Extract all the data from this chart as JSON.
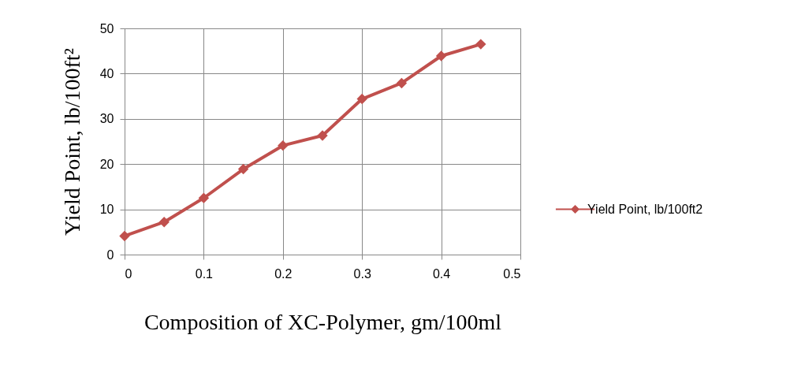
{
  "chart_data": {
    "type": "line",
    "xlabel": "Composition of XC-Polymer, gm/100ml",
    "ylabel": "Yield Point, lb/100ft²",
    "x": [
      0,
      0.05,
      0.1,
      0.15,
      0.2,
      0.25,
      0.3,
      0.35,
      0.4,
      0.45
    ],
    "series": [
      {
        "name": "Yield Point, lb/100ft2",
        "color": "#c0504d",
        "values": [
          4.1,
          7.2,
          12.5,
          18.9,
          24.1,
          26.3,
          34.4,
          37.9,
          43.9,
          46.5
        ]
      }
    ],
    "xlim": [
      0,
      0.5
    ],
    "xticks": [
      0,
      0.1,
      0.2,
      0.3,
      0.4,
      0.5
    ],
    "ylim": [
      0,
      50
    ],
    "yticks": [
      0,
      10,
      20,
      30,
      40,
      50
    ],
    "grid": true,
    "legend": "right",
    "marker": "diamond",
    "line_style": "solid"
  }
}
